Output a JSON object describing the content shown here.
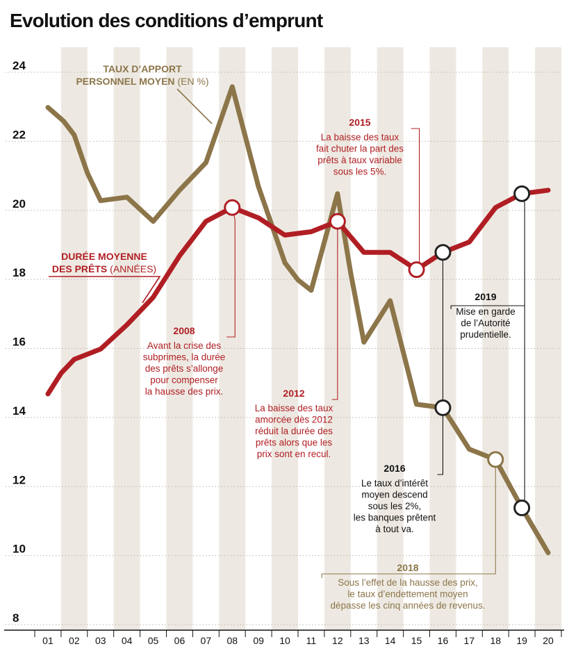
{
  "title": "Evolution des conditions d’emprunt",
  "chart_data": {
    "type": "line",
    "title": "Evolution des conditions d’emprunt",
    "categories": [
      "01",
      "02",
      "03",
      "04",
      "05",
      "06",
      "07",
      "08",
      "09",
      "10",
      "11",
      "12",
      "13",
      "14",
      "15",
      "16",
      "17",
      "18",
      "19",
      "20"
    ],
    "ylim": [
      8,
      24
    ],
    "yticks": [
      24,
      22,
      20,
      18,
      16,
      14,
      12,
      10,
      8
    ],
    "grid": "alternating vertical bands, dotted horizontal lines",
    "series": [
      {
        "name_line1": "TAUX D’APPORT",
        "name_line2": "PERSONNEL MOYEN",
        "unit": "(EN %)",
        "color": "#8c7549",
        "points": [
          [
            1.0,
            22.7
          ],
          [
            1.6,
            22.3
          ],
          [
            2.0,
            21.9
          ],
          [
            2.5,
            20.8
          ],
          [
            3.0,
            20.0
          ],
          [
            4.0,
            20.1
          ],
          [
            5.0,
            19.4
          ],
          [
            6.0,
            20.3
          ],
          [
            7.0,
            21.1
          ],
          [
            8.0,
            23.3
          ],
          [
            9.0,
            20.4
          ],
          [
            10.0,
            18.2
          ],
          [
            10.5,
            17.7
          ],
          [
            11.0,
            17.4
          ],
          [
            12.0,
            20.2
          ],
          [
            12.5,
            17.9
          ],
          [
            13.0,
            15.9
          ],
          [
            14.0,
            17.1
          ],
          [
            15.0,
            14.1
          ],
          [
            16.0,
            14.0
          ],
          [
            17.0,
            12.8
          ],
          [
            18.0,
            12.5
          ],
          [
            19.0,
            11.1
          ],
          [
            20.0,
            9.8
          ]
        ],
        "markers": [
          [
            16,
            14.0
          ],
          [
            18,
            12.5
          ],
          [
            19,
            11.1
          ]
        ]
      },
      {
        "name_line1": "DURÉE MOYENNE",
        "name_line2": "DES PRÊTS",
        "unit": "(ANNÉES)",
        "color": "#b01e23",
        "points": [
          [
            1.0,
            14.4
          ],
          [
            1.5,
            15.0
          ],
          [
            2.0,
            15.4
          ],
          [
            3.0,
            15.7
          ],
          [
            4.0,
            16.4
          ],
          [
            5.0,
            17.2
          ],
          [
            6.0,
            18.4
          ],
          [
            7.0,
            19.4
          ],
          [
            8.0,
            19.8
          ],
          [
            9.0,
            19.5
          ],
          [
            10.0,
            19.0
          ],
          [
            11.0,
            19.1
          ],
          [
            12.0,
            19.4
          ],
          [
            13.0,
            18.5
          ],
          [
            14.0,
            18.5
          ],
          [
            15.0,
            18.0
          ],
          [
            16.0,
            18.5
          ],
          [
            17.0,
            18.8
          ],
          [
            18.0,
            19.8
          ],
          [
            19.0,
            20.2
          ],
          [
            20.0,
            20.3
          ]
        ],
        "markers": [
          [
            8,
            19.8
          ],
          [
            12,
            19.4
          ],
          [
            15,
            18.0
          ],
          [
            16,
            18.5
          ],
          [
            19,
            20.2
          ]
        ]
      }
    ],
    "annotations": [
      {
        "year": "2008",
        "lines": [
          "Avant la crise des",
          "subprimes, la durée",
          "des prêts s’allonge",
          "pour compenser",
          "la hausse des prix."
        ],
        "color": "#b01e23"
      },
      {
        "year": "2012",
        "lines": [
          "La baisse des taux",
          "amorcée dès 2012",
          "réduit la durée des",
          "prêts alors que les",
          "prix sont en recul."
        ],
        "color": "#b01e23"
      },
      {
        "year": "2015",
        "lines": [
          "La baisse des taux",
          "fait chuter la part des",
          "prêts à taux variable",
          "sous les 5%."
        ],
        "color": "#b01e23"
      },
      {
        "year": "2016",
        "lines": [
          "Le taux d’intérêt",
          "moyen descend",
          "sous les 2%,",
          "les banques prêtent",
          "à tout va."
        ],
        "color": "#111111"
      },
      {
        "year": "2018",
        "lines": [
          "Sous l’effet de la hausse des prix,",
          "le taux d’endettement moyen",
          "dépasse les cinq années de revenus."
        ],
        "color": "#8c7549"
      },
      {
        "year": "2019",
        "lines": [
          "Mise en garde",
          "de l’Autorité",
          "prudentielle."
        ],
        "color": "#111111"
      }
    ],
    "colors": {
      "band": "#ede9e2",
      "apport": "#8c7549",
      "duree": "#b01e23",
      "annotation_dark": "#111111"
    }
  }
}
